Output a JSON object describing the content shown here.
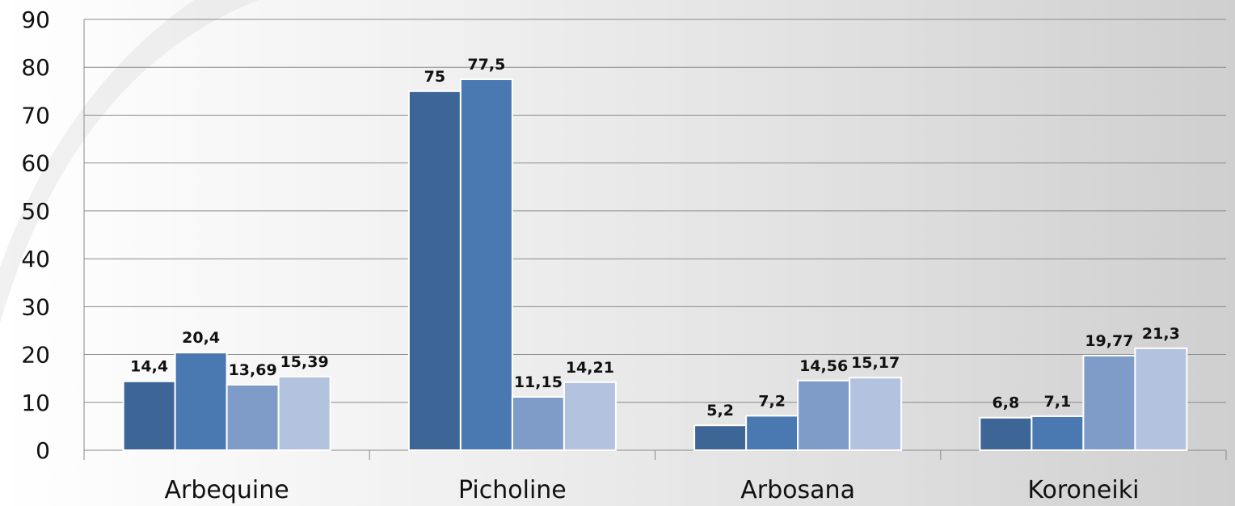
{
  "chart_data": {
    "type": "bar",
    "title": "",
    "xlabel": "",
    "ylabel": "",
    "categories": [
      "Arbequine",
      "Picholine",
      "Arbosana",
      "Koroneiki"
    ],
    "series": [
      {
        "values": [
          14.4,
          75,
          5.2,
          6.8
        ],
        "labels": [
          "14,4",
          "75",
          "5,2",
          "6,8"
        ],
        "color": "#3d6596"
      },
      {
        "values": [
          20.4,
          77.5,
          7.2,
          7.1
        ],
        "labels": [
          "20,4",
          "77,5",
          "7,2",
          "7,1"
        ],
        "color": "#4a78b0"
      },
      {
        "values": [
          13.69,
          11.15,
          14.56,
          19.77
        ],
        "labels": [
          "13,69",
          "11,15",
          "14,56",
          "19,77"
        ],
        "color": "#7f9cc8"
      },
      {
        "values": [
          15.39,
          14.21,
          15.17,
          21.3
        ],
        "labels": [
          "15,39",
          "14,21",
          "15,17",
          "21,3"
        ],
        "color": "#b3c2de"
      }
    ],
    "ylim": [
      0,
      90
    ],
    "yticks": [
      0,
      10,
      20,
      30,
      40,
      50,
      60,
      70,
      80,
      90
    ],
    "grid": true,
    "legend": "none"
  }
}
